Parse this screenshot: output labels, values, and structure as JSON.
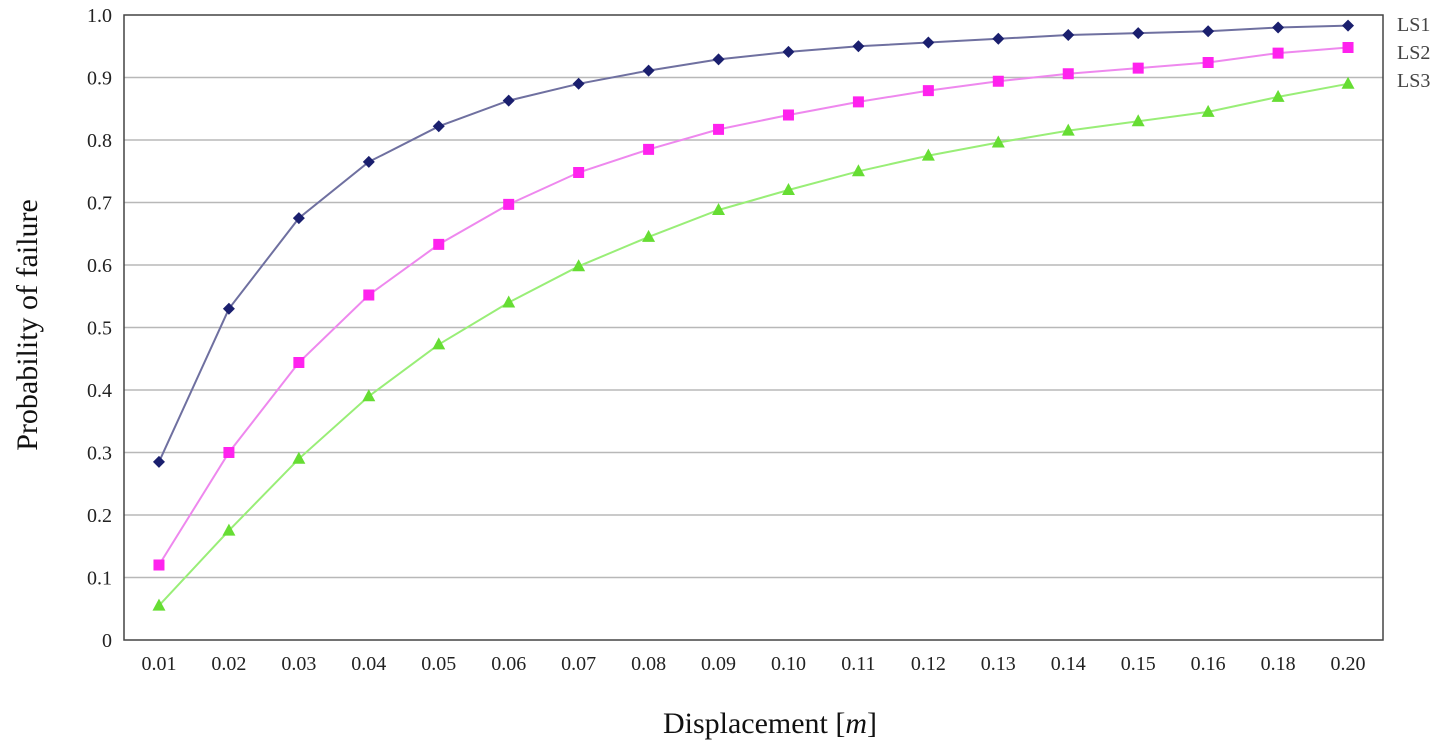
{
  "chart_data": {
    "type": "line",
    "title": "",
    "xlabel": "Displacement [",
    "xlabel_unit": "m",
    "xlabel_end": "]",
    "ylabel": "Probability of failure",
    "categories": [
      "0.01",
      "0.02",
      "0.03",
      "0.04",
      "0.05",
      "0.06",
      "0.07",
      "0.08",
      "0.09",
      "0.10",
      "0.11",
      "0.12",
      "0.13",
      "0.14",
      "0.15",
      "0.16",
      "0.18",
      "0.20"
    ],
    "ylim": [
      0,
      1.0
    ],
    "yticks": [
      "0",
      "0.1",
      "0.2",
      "0.3",
      "0.4",
      "0.5",
      "0.6",
      "0.7",
      "0.8",
      "0.9",
      "1.0"
    ],
    "grid": "horizontal",
    "legend_placement": "right",
    "series": [
      {
        "name": "LS1",
        "color": "#1a1f6e",
        "line_color": "#6f70a0",
        "marker": "diamond",
        "values": [
          0.285,
          0.53,
          0.675,
          0.765,
          0.822,
          0.863,
          0.89,
          0.911,
          0.929,
          0.941,
          0.95,
          0.956,
          0.962,
          0.968,
          0.971,
          0.974,
          0.98,
          0.983
        ]
      },
      {
        "name": "LS2",
        "color": "#ff22ee",
        "line_color": "#ee88ee",
        "marker": "square",
        "values": [
          0.12,
          0.3,
          0.444,
          0.552,
          0.633,
          0.697,
          0.748,
          0.785,
          0.817,
          0.84,
          0.861,
          0.879,
          0.894,
          0.906,
          0.915,
          0.924,
          0.939,
          0.948
        ]
      },
      {
        "name": "LS3",
        "color": "#66dd33",
        "line_color": "#99ee77",
        "marker": "triangle",
        "values": [
          0.055,
          0.175,
          0.29,
          0.39,
          0.473,
          0.54,
          0.598,
          0.645,
          0.688,
          0.72,
          0.75,
          0.775,
          0.796,
          0.815,
          0.83,
          0.845,
          0.869,
          0.89
        ]
      }
    ]
  }
}
